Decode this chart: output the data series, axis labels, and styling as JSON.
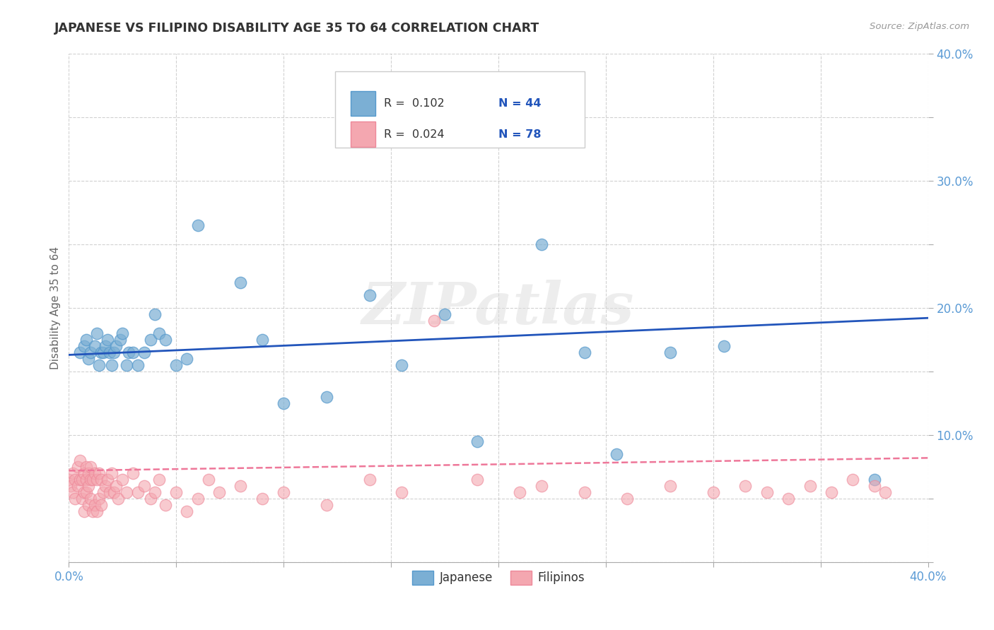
{
  "title": "JAPANESE VS FILIPINO DISABILITY AGE 35 TO 64 CORRELATION CHART",
  "source": "Source: ZipAtlas.com",
  "ylabel": "Disability Age 35 to 64",
  "xlim": [
    0.0,
    0.4
  ],
  "ylim": [
    0.0,
    0.4
  ],
  "xticks": [
    0.0,
    0.05,
    0.1,
    0.15,
    0.2,
    0.25,
    0.3,
    0.35,
    0.4
  ],
  "yticks": [
    0.0,
    0.05,
    0.1,
    0.15,
    0.2,
    0.25,
    0.3,
    0.35,
    0.4
  ],
  "xticklabels": [
    "0.0%",
    "",
    "",
    "",
    "",
    "",
    "",
    "",
    "40.0%"
  ],
  "yticklabels": [
    "",
    "",
    "10.0%",
    "",
    "20.0%",
    "",
    "30.0%",
    "",
    "40.0%"
  ],
  "japanese_color": "#7BAFD4",
  "japanese_edge_color": "#5599CC",
  "filipino_color": "#F4A7B0",
  "filipino_edge_color": "#EE8899",
  "japanese_line_color": "#2255BB",
  "filipino_line_color": "#EE7799",
  "watermark": "ZIPatlas",
  "legend_R_japanese": "R =  0.102",
  "legend_N_japanese": "N = 44",
  "legend_R_filipino": "R =  0.024",
  "legend_N_filipino": "N = 78",
  "legend_text_color": "#2255BB",
  "japanese_x": [
    0.005,
    0.007,
    0.008,
    0.009,
    0.01,
    0.012,
    0.013,
    0.014,
    0.015,
    0.016,
    0.017,
    0.018,
    0.019,
    0.02,
    0.021,
    0.022,
    0.024,
    0.025,
    0.027,
    0.028,
    0.03,
    0.032,
    0.035,
    0.038,
    0.04,
    0.042,
    0.045,
    0.05,
    0.055,
    0.06,
    0.08,
    0.09,
    0.1,
    0.12,
    0.14,
    0.155,
    0.175,
    0.19,
    0.22,
    0.24,
    0.255,
    0.28,
    0.305,
    0.375
  ],
  "japanese_y": [
    0.165,
    0.17,
    0.175,
    0.16,
    0.165,
    0.17,
    0.18,
    0.155,
    0.165,
    0.165,
    0.17,
    0.175,
    0.165,
    0.155,
    0.165,
    0.17,
    0.175,
    0.18,
    0.155,
    0.165,
    0.165,
    0.155,
    0.165,
    0.175,
    0.195,
    0.18,
    0.175,
    0.155,
    0.16,
    0.265,
    0.22,
    0.175,
    0.125,
    0.13,
    0.21,
    0.155,
    0.195,
    0.095,
    0.25,
    0.165,
    0.085,
    0.165,
    0.17,
    0.065
  ],
  "filipino_x": [
    0.0,
    0.001,
    0.002,
    0.002,
    0.003,
    0.003,
    0.004,
    0.004,
    0.005,
    0.005,
    0.006,
    0.006,
    0.007,
    0.007,
    0.007,
    0.008,
    0.008,
    0.008,
    0.009,
    0.009,
    0.009,
    0.01,
    0.01,
    0.01,
    0.011,
    0.011,
    0.012,
    0.012,
    0.013,
    0.013,
    0.014,
    0.014,
    0.015,
    0.015,
    0.016,
    0.017,
    0.018,
    0.019,
    0.02,
    0.021,
    0.022,
    0.023,
    0.025,
    0.027,
    0.03,
    0.032,
    0.035,
    0.038,
    0.04,
    0.042,
    0.045,
    0.05,
    0.055,
    0.06,
    0.065,
    0.07,
    0.08,
    0.09,
    0.1,
    0.12,
    0.14,
    0.155,
    0.17,
    0.19,
    0.21,
    0.22,
    0.24,
    0.26,
    0.28,
    0.3,
    0.315,
    0.325,
    0.335,
    0.345,
    0.355,
    0.365,
    0.375,
    0.38
  ],
  "filipino_y": [
    0.065,
    0.06,
    0.07,
    0.055,
    0.05,
    0.065,
    0.06,
    0.075,
    0.065,
    0.08,
    0.05,
    0.065,
    0.055,
    0.07,
    0.04,
    0.055,
    0.065,
    0.075,
    0.045,
    0.06,
    0.07,
    0.05,
    0.065,
    0.075,
    0.04,
    0.065,
    0.045,
    0.07,
    0.04,
    0.065,
    0.05,
    0.07,
    0.045,
    0.065,
    0.055,
    0.06,
    0.065,
    0.055,
    0.07,
    0.055,
    0.06,
    0.05,
    0.065,
    0.055,
    0.07,
    0.055,
    0.06,
    0.05,
    0.055,
    0.065,
    0.045,
    0.055,
    0.04,
    0.05,
    0.065,
    0.055,
    0.06,
    0.05,
    0.055,
    0.045,
    0.065,
    0.055,
    0.19,
    0.065,
    0.055,
    0.06,
    0.055,
    0.05,
    0.06,
    0.055,
    0.06,
    0.055,
    0.05,
    0.06,
    0.055,
    0.065,
    0.06,
    0.055
  ],
  "jline_x0": 0.0,
  "jline_x1": 0.4,
  "jline_y0": 0.163,
  "jline_y1": 0.192,
  "fline_x0": 0.0,
  "fline_x1": 0.4,
  "fline_y0": 0.072,
  "fline_y1": 0.082
}
